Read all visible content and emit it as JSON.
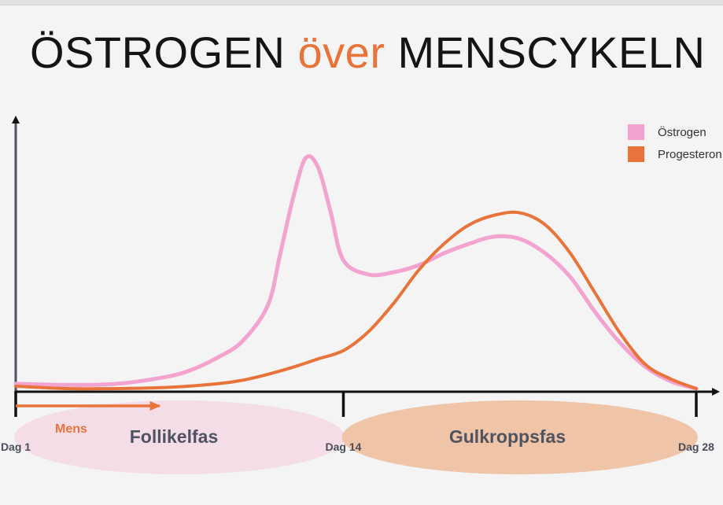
{
  "title": {
    "part1": "ÖSTROGEN ",
    "part2": "över",
    "part3": " MENSCYKELN"
  },
  "colors": {
    "estrogen": "#f2a3cf",
    "progesterone": "#e8743b",
    "axis": "#4a5263",
    "follicular_fill": "#f5dde8",
    "luteal_fill": "#f0c4a6",
    "accent": "#e8743b"
  },
  "chart_data": {
    "type": "line",
    "title": "ÖSTROGEN över MENSCYKELN",
    "xlabel": "",
    "ylabel": "",
    "xlim": [
      1,
      28
    ],
    "ylim": [
      0,
      100
    ],
    "grid": false,
    "legend_position": "top-right",
    "x_ticks": [
      {
        "x": 1,
        "label": "Dag 1"
      },
      {
        "x": 14,
        "label": "Dag 14"
      },
      {
        "x": 28,
        "label": "Dag 28"
      }
    ],
    "series": [
      {
        "name": "Östrogen",
        "x": [
          1,
          3,
          5,
          7,
          8,
          9,
          10,
          11,
          11.5,
          12,
          12.5,
          13,
          13.5,
          14,
          15,
          16,
          17,
          18,
          19,
          20,
          21,
          22,
          23,
          24,
          25,
          26,
          27,
          28
        ],
        "values": [
          3,
          2.5,
          3,
          6,
          9,
          14,
          21,
          36,
          58,
          81,
          98,
          94,
          75,
          55,
          49,
          50,
          53,
          58,
          62,
          65,
          64,
          58,
          48,
          33,
          20,
          10,
          4,
          1
        ]
      },
      {
        "name": "Progesteron",
        "x": [
          1,
          3,
          5,
          7,
          9,
          10,
          11,
          12,
          13,
          14,
          15,
          16,
          17,
          18,
          19,
          20,
          21,
          22,
          23,
          24,
          25,
          26,
          27,
          28
        ],
        "values": [
          2,
          1,
          1,
          1.5,
          3,
          4.5,
          7,
          10,
          13.5,
          17,
          25,
          37,
          51,
          62,
          70,
          74,
          75,
          70,
          58,
          41,
          24,
          11,
          5,
          1
        ]
      }
    ],
    "annotations": [
      {
        "text": "Mens",
        "x_start": 1,
        "x_end": 6.7,
        "type": "arrow"
      },
      {
        "text": "Follikelfas",
        "x_start": 1,
        "x_end": 14,
        "type": "region"
      },
      {
        "text": "Gulkroppsfas",
        "x_start": 14,
        "x_end": 28,
        "type": "region"
      }
    ]
  }
}
